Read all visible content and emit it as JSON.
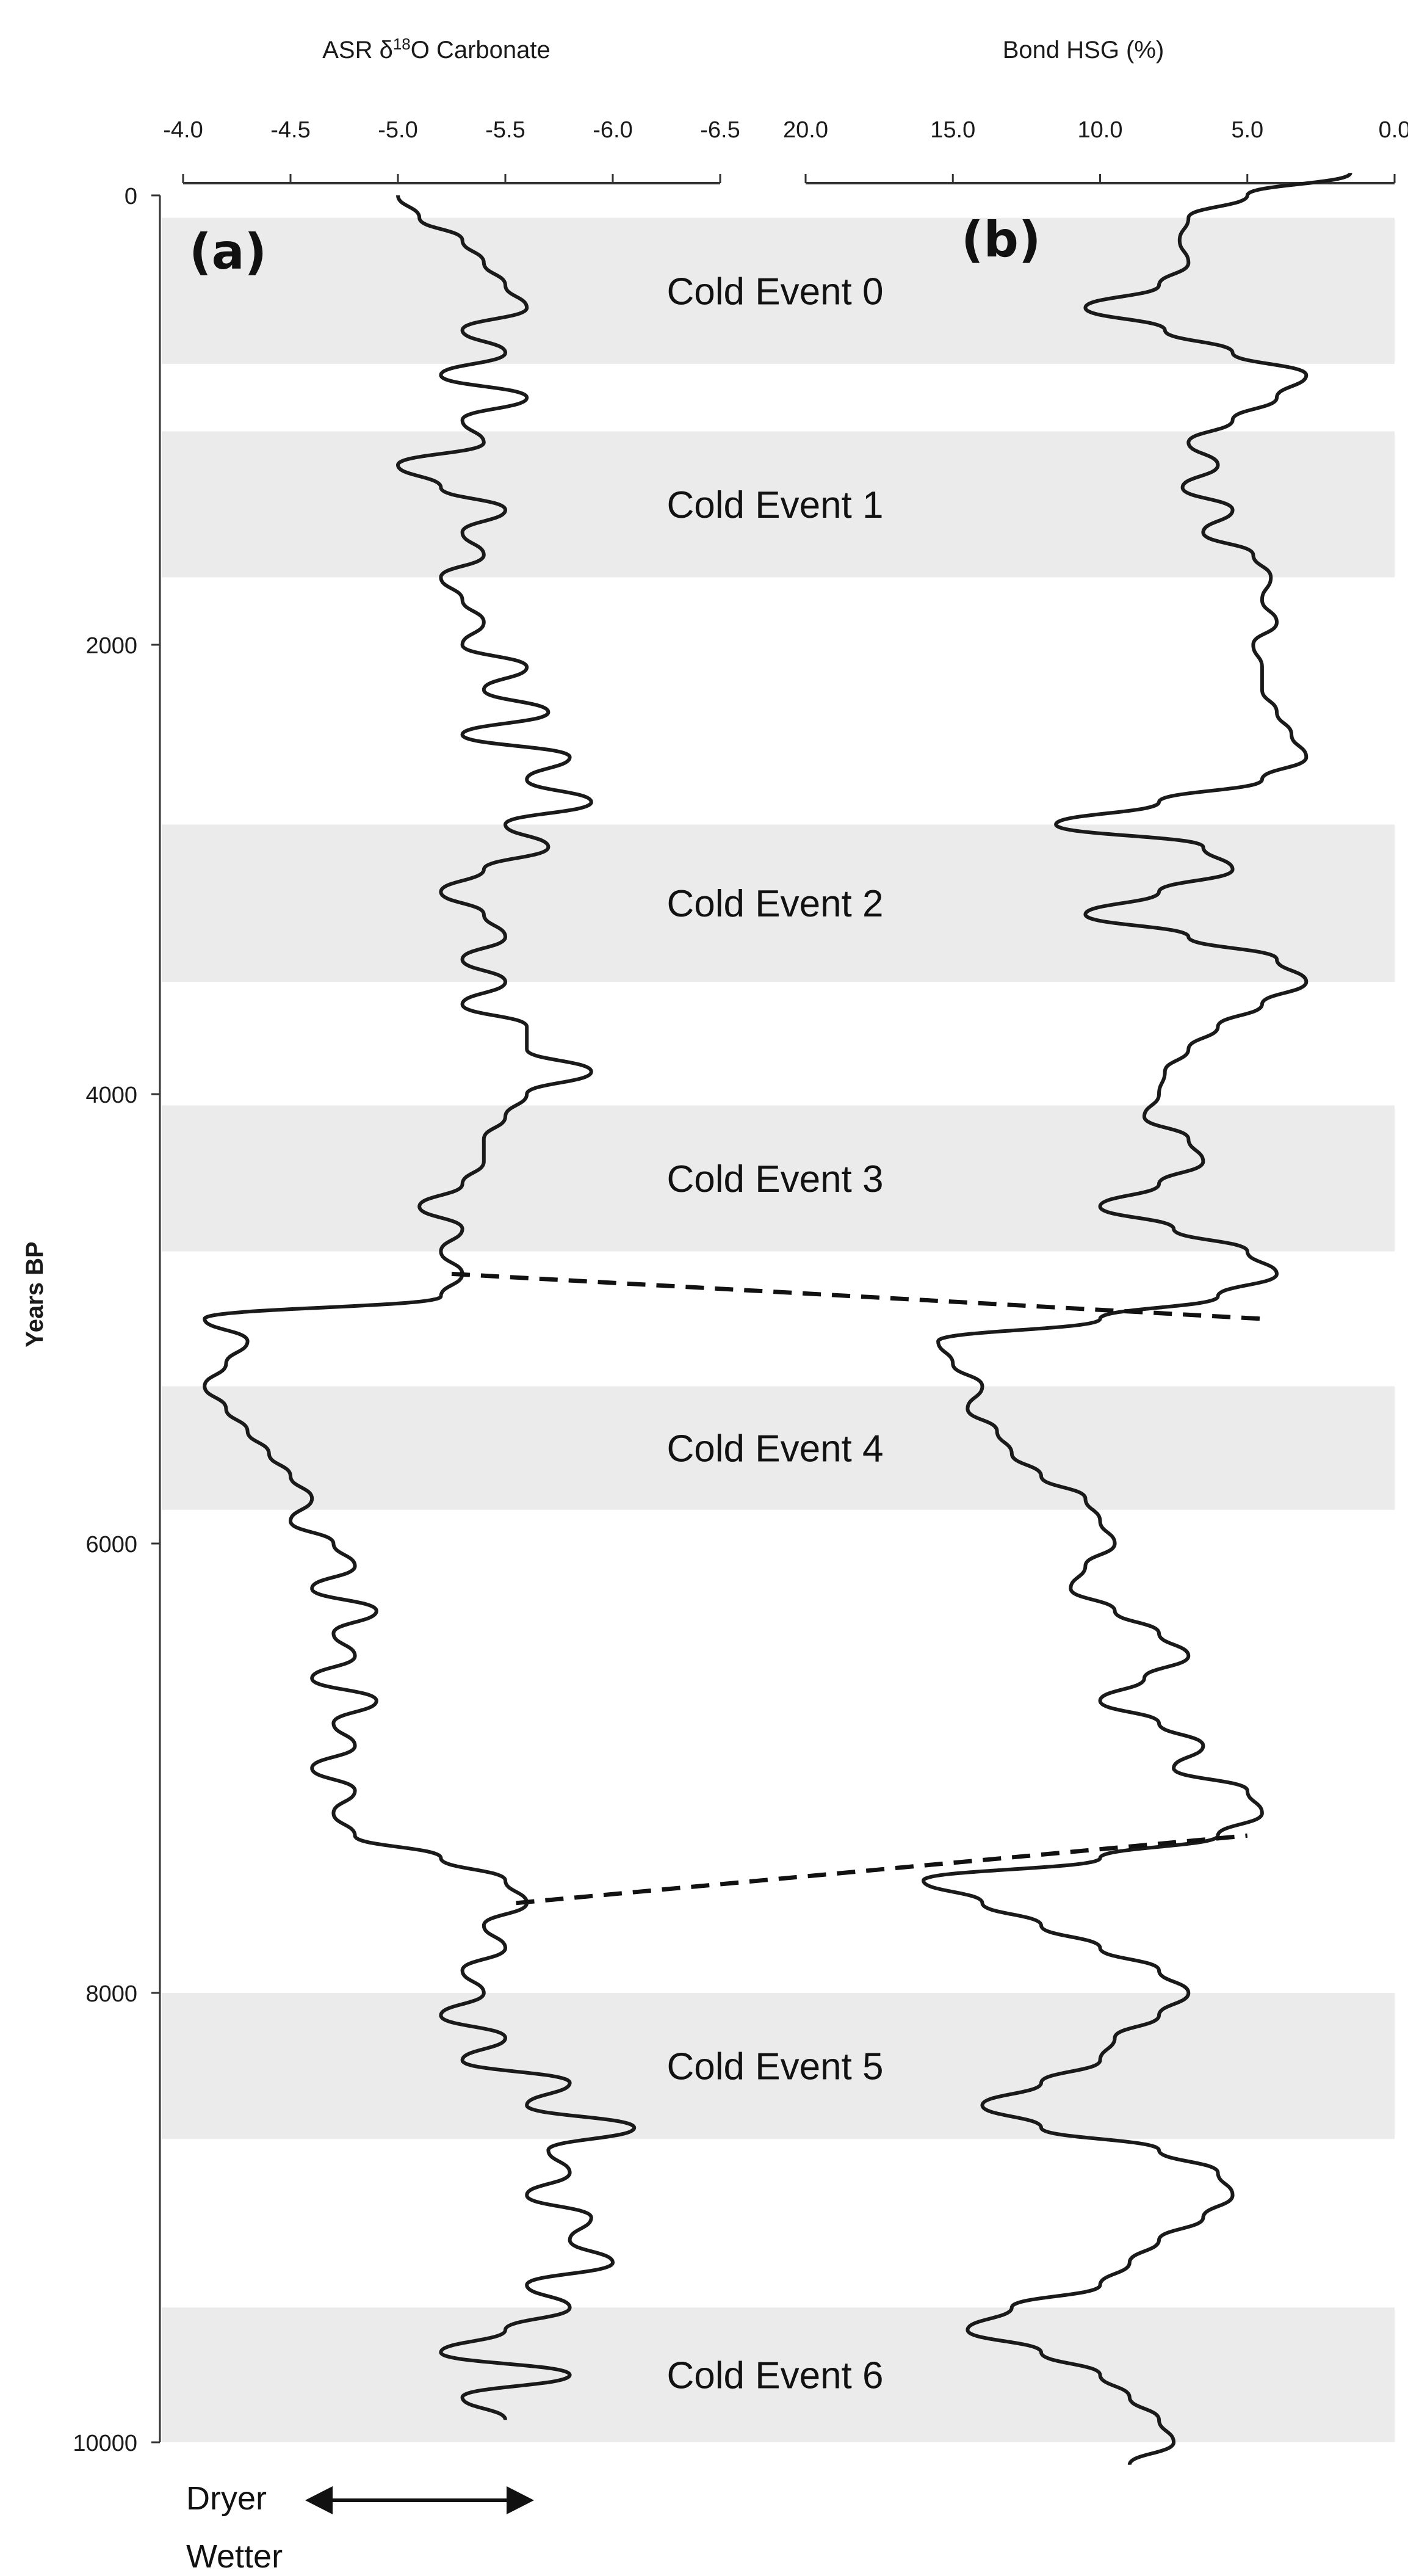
{
  "chart_data": [
    {
      "panel_label": "(a)",
      "type": "line",
      "orientation": "vertical-depth",
      "title": "ASR δ18O Carbonate",
      "title_text": "ASR δ",
      "title_sup": "18",
      "title_tail": "O Carbonate",
      "x_axis": "top",
      "x_reversed": true,
      "xlim": [
        -4.0,
        -6.5
      ],
      "xticks": [
        -4.0,
        -4.5,
        -5.0,
        -5.5,
        -6.0,
        -6.5
      ],
      "xtick_labels": [
        "-4.0",
        "-4.5",
        "-5.0",
        "-5.5",
        "-6.0",
        "-6.5"
      ],
      "ylabel": "Years BP",
      "ylim": [
        0,
        10000
      ],
      "yticks": [
        0,
        2000,
        4000,
        6000,
        8000,
        10000
      ],
      "ytick_labels": [
        "0",
        "2000",
        "4000",
        "6000",
        "8000",
        "10000"
      ],
      "series": [
        {
          "color": "#1a1a1a",
          "y": [
            0,
            100,
            200,
            300,
            400,
            500,
            600,
            700,
            800,
            900,
            1000,
            1100,
            1200,
            1300,
            1400,
            1500,
            1600,
            1700,
            1800,
            1900,
            2000,
            2100,
            2200,
            2300,
            2400,
            2500,
            2600,
            2700,
            2800,
            2900,
            3000,
            3100,
            3200,
            3300,
            3400,
            3500,
            3600,
            3700,
            3800,
            3900,
            4000,
            4100,
            4200,
            4300,
            4400,
            4500,
            4600,
            4700,
            4800,
            4900,
            5000,
            5100,
            5200,
            5300,
            5400,
            5500,
            5600,
            5700,
            5800,
            5900,
            6000,
            6100,
            6200,
            6300,
            6400,
            6500,
            6600,
            6700,
            6800,
            6900,
            7000,
            7100,
            7200,
            7300,
            7400,
            7500,
            7600,
            7700,
            7800,
            7900,
            8000,
            8100,
            8200,
            8300,
            8400,
            8500,
            8600,
            8700,
            8800,
            8900,
            9000,
            9100,
            9200,
            9300,
            9400,
            9500,
            9600,
            9700,
            9800,
            9900
          ],
          "x": [
            -5.0,
            -5.1,
            -5.3,
            -5.4,
            -5.5,
            -5.6,
            -5.3,
            -5.5,
            -5.2,
            -5.6,
            -5.3,
            -5.4,
            -5.0,
            -5.2,
            -5.5,
            -5.3,
            -5.4,
            -5.2,
            -5.3,
            -5.4,
            -5.3,
            -5.6,
            -5.4,
            -5.7,
            -5.3,
            -5.8,
            -5.6,
            -5.9,
            -5.5,
            -5.7,
            -5.4,
            -5.2,
            -5.4,
            -5.5,
            -5.3,
            -5.5,
            -5.3,
            -5.6,
            -5.6,
            -5.9,
            -5.6,
            -5.5,
            -5.4,
            -5.4,
            -5.3,
            -5.1,
            -5.3,
            -5.2,
            -5.3,
            -5.2,
            -4.1,
            -4.3,
            -4.2,
            -4.1,
            -4.2,
            -4.3,
            -4.4,
            -4.5,
            -4.6,
            -4.5,
            -4.7,
            -4.8,
            -4.6,
            -4.9,
            -4.7,
            -4.8,
            -4.6,
            -4.9,
            -4.7,
            -4.8,
            -4.6,
            -4.8,
            -4.7,
            -4.8,
            -5.2,
            -5.5,
            -5.6,
            -5.4,
            -5.5,
            -5.3,
            -5.4,
            -5.2,
            -5.5,
            -5.3,
            -5.8,
            -5.6,
            -6.1,
            -5.7,
            -5.8,
            -5.6,
            -5.9,
            -5.8,
            -6.0,
            -5.6,
            -5.8,
            -5.5,
            -5.2,
            -5.8,
            -5.3,
            -5.5
          ]
        }
      ]
    },
    {
      "panel_label": "(b)",
      "type": "line",
      "orientation": "vertical-depth",
      "title": "Bond HSG (%)",
      "x_axis": "top",
      "x_reversed": true,
      "xlim": [
        20.0,
        0.0
      ],
      "xticks": [
        20.0,
        15.0,
        10.0,
        5.0,
        0.0
      ],
      "xtick_labels": [
        "20.0",
        "15.0",
        "10.0",
        "5.0",
        "0.0"
      ],
      "ylim": [
        0,
        10000
      ],
      "series": [
        {
          "color": "#1a1a1a",
          "y": [
            -100,
            0,
            100,
            200,
            300,
            400,
            500,
            600,
            700,
            800,
            900,
            1000,
            1100,
            1200,
            1300,
            1400,
            1500,
            1600,
            1700,
            1800,
            1900,
            2000,
            2100,
            2200,
            2300,
            2400,
            2500,
            2600,
            2700,
            2800,
            2900,
            3000,
            3100,
            3200,
            3300,
            3400,
            3500,
            3600,
            3700,
            3800,
            3900,
            4000,
            4100,
            4200,
            4300,
            4400,
            4500,
            4600,
            4700,
            4800,
            4900,
            5000,
            5100,
            5200,
            5300,
            5400,
            5500,
            5600,
            5700,
            5800,
            5900,
            6000,
            6100,
            6200,
            6300,
            6400,
            6500,
            6600,
            6700,
            6800,
            6900,
            7000,
            7100,
            7200,
            7300,
            7400,
            7500,
            7600,
            7700,
            7800,
            7900,
            8000,
            8100,
            8200,
            8300,
            8400,
            8500,
            8600,
            8700,
            8800,
            8900,
            9000,
            9100,
            9200,
            9300,
            9400,
            9500,
            9600,
            9700,
            9800,
            9900,
            10000,
            10100
          ],
          "x": [
            1.5,
            5.0,
            7.0,
            7.3,
            7.0,
            8.0,
            10.5,
            7.8,
            5.5,
            3.0,
            4.0,
            5.5,
            7.0,
            6.0,
            7.2,
            5.5,
            6.5,
            4.8,
            4.2,
            4.5,
            4.0,
            4.8,
            4.5,
            4.5,
            4.0,
            3.5,
            3.0,
            4.5,
            8.0,
            11.5,
            6.5,
            5.5,
            8.0,
            10.5,
            7.0,
            4.0,
            3.0,
            4.5,
            6.0,
            7.0,
            7.8,
            8.0,
            8.5,
            7.0,
            6.5,
            8.0,
            10.0,
            7.5,
            5.0,
            4.0,
            6.0,
            10.0,
            15.5,
            15.0,
            14.0,
            14.5,
            13.5,
            13.0,
            12.0,
            10.5,
            10.0,
            9.5,
            10.5,
            11.0,
            9.5,
            8.0,
            7.0,
            8.5,
            10.0,
            8.0,
            6.5,
            7.5,
            5.0,
            4.5,
            6.0,
            10.0,
            16.0,
            14.0,
            12.0,
            10.0,
            8.0,
            7.0,
            8.0,
            9.5,
            10.0,
            12.0,
            14.0,
            12.0,
            8.0,
            6.0,
            5.5,
            6.5,
            8.0,
            9.0,
            10.0,
            13.0,
            14.5,
            12.0,
            10.0,
            9.0,
            8.0,
            7.5,
            9.0
          ]
        }
      ],
      "connectors": [
        {
          "from": {
            "x": -5.25,
            "y": 4800
          },
          "to": {
            "x": 4.5,
            "y": 5000
          }
        },
        {
          "from": {
            "x": -5.55,
            "y": 7600
          },
          "to": {
            "x": 5.0,
            "y": 7300
          }
        }
      ]
    }
  ],
  "shaded_bands": [
    {
      "label": "Cold Event 0",
      "from": 100,
      "to": 750
    },
    {
      "label": "Cold Event 1",
      "from": 1050,
      "to": 1700
    },
    {
      "label": "Cold Event 2",
      "from": 2800,
      "to": 3500
    },
    {
      "label": "Cold Event 3",
      "from": 4050,
      "to": 4700
    },
    {
      "label": "Cold Event 4",
      "from": 5300,
      "to": 5850
    },
    {
      "label": "Cold Event 5",
      "from": 8000,
      "to": 8650
    },
    {
      "label": "Cold Event 6",
      "from": 9400,
      "to": 10000
    }
  ],
  "colors": {
    "band": "#ebebeb",
    "line": "#1a1a1a",
    "axis": "#333333"
  },
  "arrow": {
    "left_label": "Dryer",
    "right_label": "Wetter"
  }
}
